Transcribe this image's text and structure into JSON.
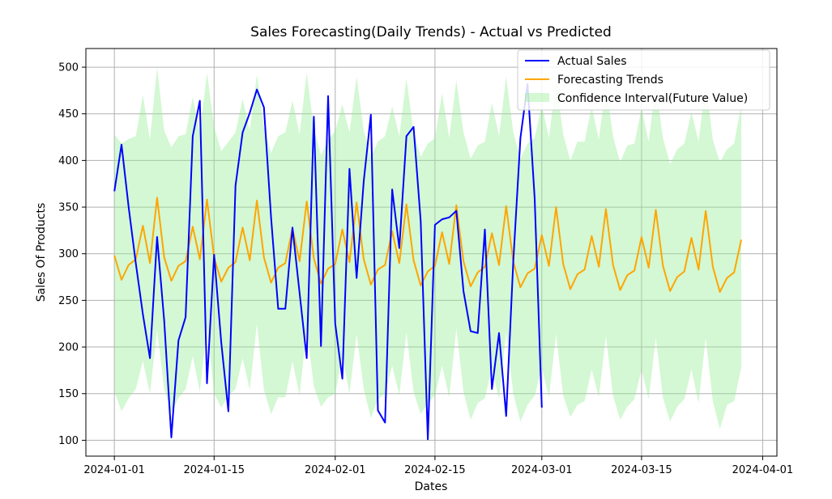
{
  "chart_data": {
    "type": "line",
    "title": "Sales Forecasting(Daily Trends) - Actual vs Predicted",
    "xlabel": "Dates",
    "ylabel": "Sales Of Products",
    "x_start": "2024-01-01",
    "xlim": [
      "2023-12-28",
      "2024-04-03"
    ],
    "ylim": [
      83,
      520
    ],
    "x_ticks": [
      "2024-01-01",
      "2024-01-15",
      "2024-02-01",
      "2024-02-15",
      "2024-03-01",
      "2024-03-15",
      "2024-04-01"
    ],
    "y_ticks": [
      100,
      150,
      200,
      250,
      300,
      350,
      400,
      450,
      500
    ],
    "grid": true,
    "legend_placement": "top-right",
    "series": [
      {
        "name": "Actual Sales",
        "color": "#0000ff",
        "values": [
          367,
          417,
          350,
          290,
          235,
          188,
          318,
          228,
          103,
          207,
          232,
          426,
          464,
          161,
          299,
          205,
          131,
          373,
          430,
          451,
          476,
          457,
          339,
          241,
          241,
          328,
          258,
          188,
          447,
          201,
          469,
          225,
          166,
          391,
          274,
          378,
          449,
          132,
          119,
          369,
          306,
          426,
          436,
          335,
          101,
          331,
          337,
          339,
          346,
          260,
          217,
          215,
          326,
          155,
          215,
          126,
          292,
          424,
          482,
          359,
          135
        ]
      },
      {
        "name": "Forecasting Trends",
        "color": "#ffa500",
        "values": [
          298,
          272,
          288,
          294,
          330,
          290,
          360,
          296,
          271,
          287,
          292,
          329,
          294,
          358,
          296,
          270,
          285,
          291,
          328,
          293,
          357,
          296,
          269,
          285,
          290,
          327,
          292,
          356,
          295,
          268,
          284,
          289,
          326,
          291,
          355,
          294,
          267,
          283,
          288,
          324,
          290,
          353,
          293,
          266,
          281,
          287,
          323,
          289,
          352,
          292,
          265,
          280,
          286,
          322,
          288,
          351,
          291,
          264,
          279,
          284,
          320,
          287,
          350,
          289,
          262,
          278,
          283,
          319,
          286,
          348,
          288,
          261,
          277,
          282,
          318,
          285,
          347,
          287,
          260,
          275,
          281,
          317,
          283,
          346,
          286,
          259,
          274,
          280,
          315
        ]
      }
    ],
    "band": {
      "name": "Confidence Interval(Future Value)",
      "color": "#90ee90",
      "upper": [
        428,
        418,
        423,
        426,
        470,
        422,
        500,
        432,
        414,
        426,
        428,
        468,
        430,
        494,
        436,
        410,
        420,
        430,
        466,
        432,
        492,
        436,
        408,
        426,
        430,
        464,
        428,
        494,
        434,
        406,
        422,
        432,
        460,
        430,
        490,
        432,
        404,
        420,
        426,
        458,
        426,
        488,
        430,
        404,
        418,
        424,
        472,
        424,
        486,
        430,
        402,
        416,
        420,
        462,
        426,
        490,
        430,
        402,
        418,
        424,
        460,
        424,
        486,
        428,
        400,
        420,
        420,
        458,
        422,
        482,
        426,
        398,
        416,
        418,
        456,
        420,
        482,
        424,
        396,
        412,
        418,
        452,
        420,
        484,
        422,
        398,
        412,
        418,
        460
      ],
      "lower": [
        152,
        131,
        145,
        155,
        185,
        150,
        218,
        155,
        130,
        145,
        155,
        190,
        152,
        222,
        150,
        135,
        148,
        155,
        188,
        154,
        225,
        154,
        128,
        146,
        146,
        185,
        148,
        220,
        158,
        136,
        146,
        150,
        190,
        150,
        214,
        155,
        124,
        144,
        150,
        180,
        148,
        216,
        152,
        128,
        140,
        148,
        180,
        146,
        220,
        152,
        122,
        140,
        145,
        178,
        144,
        216,
        150,
        120,
        138,
        148,
        178,
        146,
        214,
        148,
        125,
        138,
        142,
        176,
        146,
        212,
        148,
        122,
        136,
        144,
        176,
        144,
        210,
        146,
        120,
        136,
        144,
        176,
        140,
        210,
        142,
        112,
        138,
        142,
        178
      ]
    }
  }
}
